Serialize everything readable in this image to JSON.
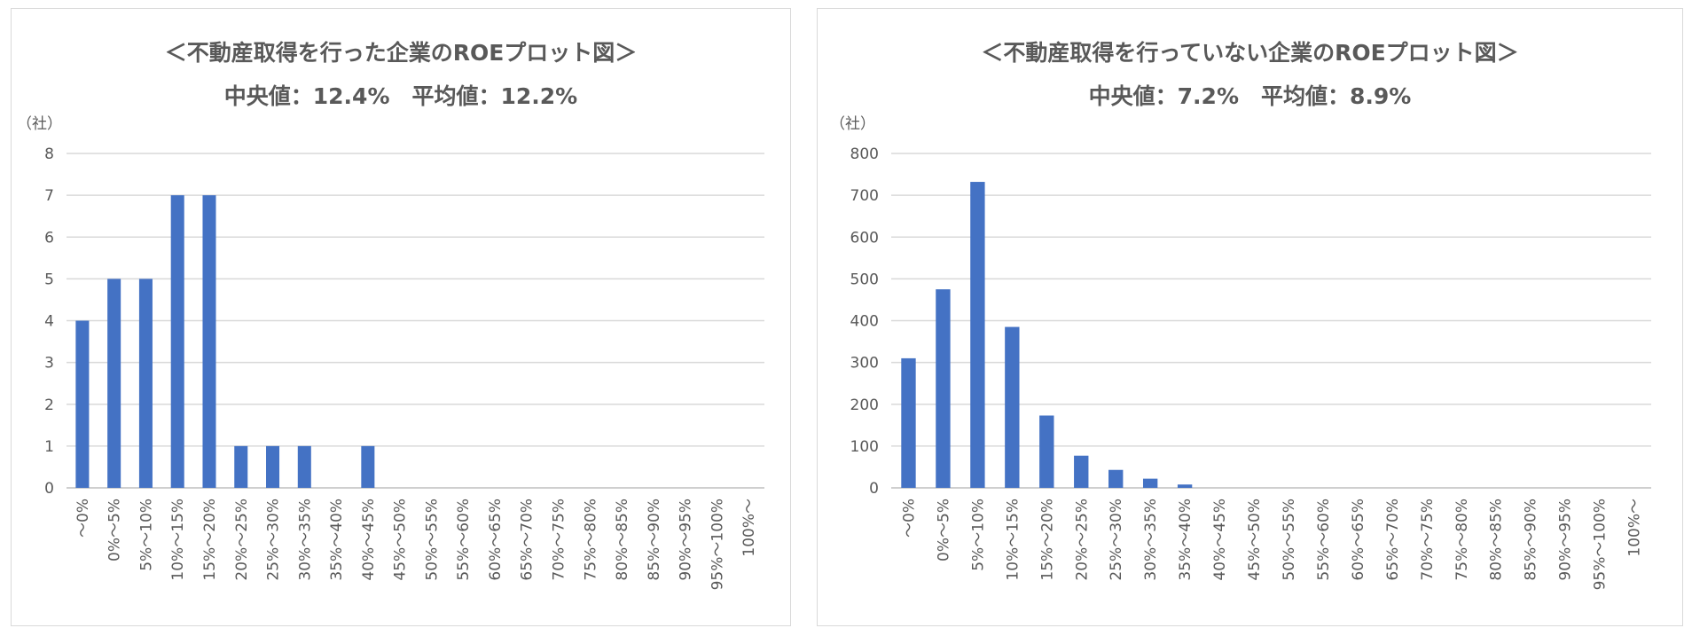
{
  "chart_data": [
    {
      "type": "bar",
      "title": "＜不動産取得を行った企業のROEプロット図＞",
      "subtitle": "中央値：12.4%　平均値：12.2%",
      "ylabel": "（社）",
      "ylim": [
        0,
        8
      ],
      "yticks": [
        0,
        1,
        2,
        3,
        4,
        5,
        6,
        7,
        8
      ],
      "grid": true,
      "categories": [
        "～0%",
        "0%～5%",
        "5%～10%",
        "10%～15%",
        "15%～20%",
        "20%～25%",
        "25%～30%",
        "30%～35%",
        "35%～40%",
        "40%～45%",
        "45%～50%",
        "50%～55%",
        "55%～60%",
        "60%～65%",
        "65%～70%",
        "70%～75%",
        "75%～80%",
        "80%～85%",
        "85%～90%",
        "90%～95%",
        "95%～100%",
        "100%～"
      ],
      "values": [
        4,
        5,
        5,
        7,
        7,
        1,
        1,
        1,
        0,
        1,
        0,
        0,
        0,
        0,
        0,
        0,
        0,
        0,
        0,
        0,
        0,
        0
      ],
      "bar_color": "#4472c4"
    },
    {
      "type": "bar",
      "title": "＜不動産取得を行っていない企業のROEプロット図＞",
      "subtitle": "中央値：7.2%　平均値：8.9%",
      "ylabel": "（社）",
      "ylim": [
        0,
        800
      ],
      "yticks": [
        0,
        100,
        200,
        300,
        400,
        500,
        600,
        700,
        800
      ],
      "grid": true,
      "categories": [
        "～0%",
        "0%～5%",
        "5%～10%",
        "10%～15%",
        "15%～20%",
        "20%～25%",
        "25%～30%",
        "30%～35%",
        "35%～40%",
        "40%～45%",
        "45%～50%",
        "50%～55%",
        "55%～60%",
        "60%～65%",
        "65%～70%",
        "70%～75%",
        "75%～80%",
        "80%～85%",
        "85%～90%",
        "90%～95%",
        "95%～100%",
        "100%～"
      ],
      "values": [
        310,
        475,
        732,
        385,
        173,
        77,
        43,
        22,
        8,
        0,
        0,
        0,
        0,
        0,
        0,
        0,
        0,
        0,
        0,
        0,
        0,
        0
      ],
      "bar_color": "#4472c4"
    }
  ]
}
